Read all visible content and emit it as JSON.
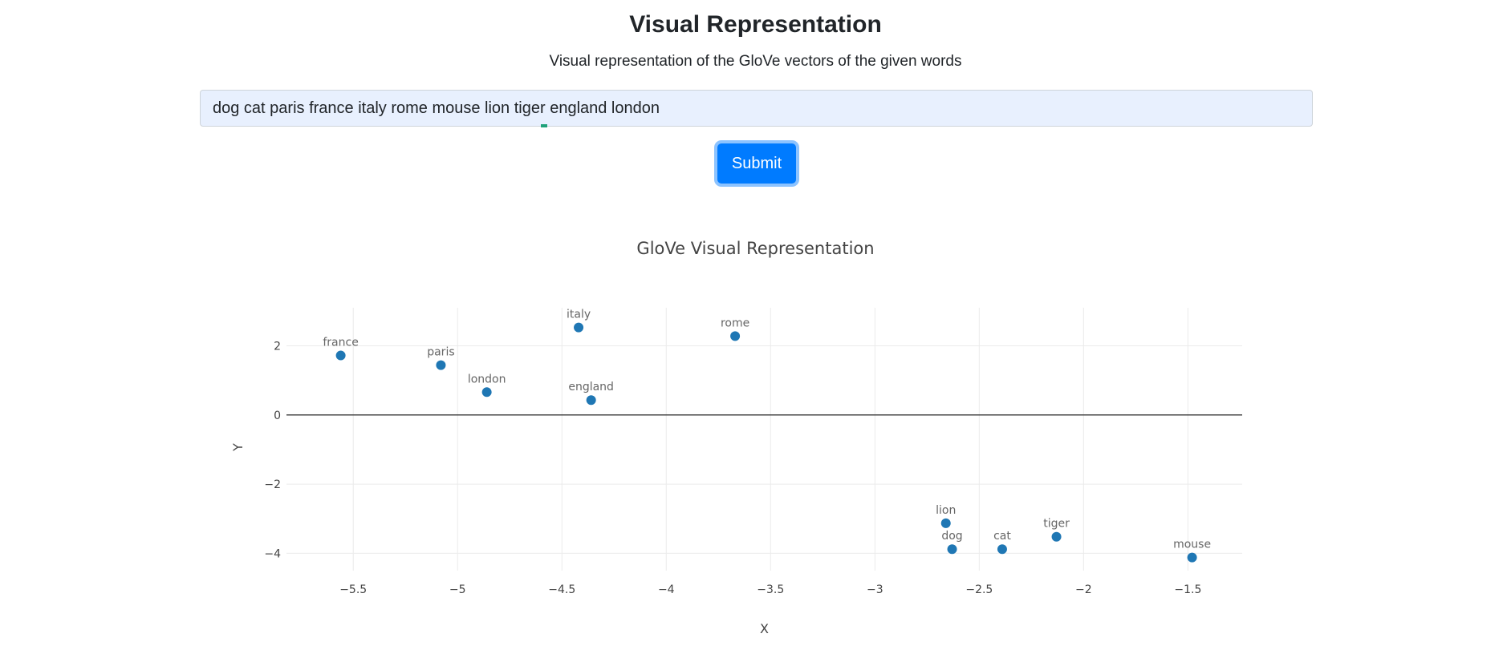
{
  "header": {
    "title": "Visual Representation",
    "subtitle": "Visual representation of the GloVe vectors of the given words"
  },
  "form": {
    "input_value": "dog cat paris france italy rome mouse lion tiger england london",
    "submit_label": "Submit"
  },
  "colors": {
    "marker": "#1f77b4",
    "button": "#007bff",
    "input_bg": "#e8f0fe"
  },
  "chart_data": {
    "type": "scatter",
    "title": "GloVe Visual Representation",
    "xlabel": "X",
    "ylabel": "Y",
    "xlim": [
      -5.82,
      -1.24
    ],
    "ylim": [
      -4.5,
      3.1
    ],
    "xticks": [
      -5.5,
      -5,
      -4.5,
      -4,
      -3.5,
      -3,
      -2.5,
      -2,
      -1.5
    ],
    "yticks": [
      -4,
      -2,
      0,
      2
    ],
    "grid": true,
    "points": [
      {
        "label": "france",
        "x": -5.56,
        "y": 1.72
      },
      {
        "label": "paris",
        "x": -5.08,
        "y": 1.44
      },
      {
        "label": "london",
        "x": -4.86,
        "y": 0.66
      },
      {
        "label": "italy",
        "x": -4.42,
        "y": 2.53
      },
      {
        "label": "england",
        "x": -4.36,
        "y": 0.43
      },
      {
        "label": "rome",
        "x": -3.67,
        "y": 2.28
      },
      {
        "label": "lion",
        "x": -2.66,
        "y": -3.13
      },
      {
        "label": "dog",
        "x": -2.63,
        "y": -3.88
      },
      {
        "label": "cat",
        "x": -2.39,
        "y": -3.88
      },
      {
        "label": "tiger",
        "x": -2.13,
        "y": -3.52
      },
      {
        "label": "mouse",
        "x": -1.48,
        "y": -4.12
      }
    ]
  }
}
